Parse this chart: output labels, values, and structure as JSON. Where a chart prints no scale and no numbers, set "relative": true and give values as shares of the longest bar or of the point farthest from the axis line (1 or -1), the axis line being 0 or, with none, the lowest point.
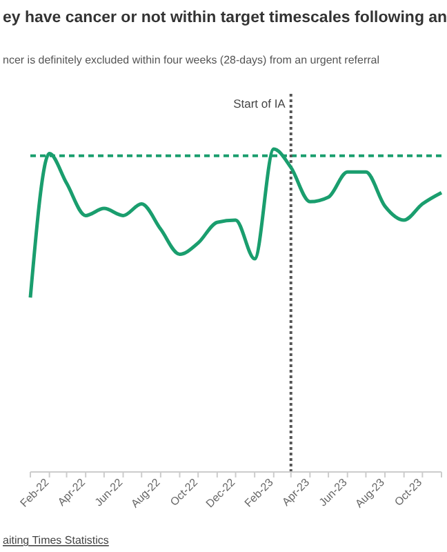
{
  "chart_data": {
    "type": "line",
    "title": "ey have cancer or not within target timescales following an",
    "subtitle": "ncer is definitely excluded within four weeks (28-days) from an urgent referral",
    "relative": true,
    "x": [
      "2022-01",
      "2022-02",
      "2022-03",
      "2022-04",
      "2022-05",
      "2022-06",
      "2022-07",
      "2022-08",
      "2022-09",
      "2022-10",
      "2022-11",
      "2022-12",
      "2023-01",
      "2023-02",
      "2023-03",
      "2023-04",
      "2023-05",
      "2023-06",
      "2023-07",
      "2023-08",
      "2023-09",
      "2023-10",
      "2023-11"
    ],
    "series": [
      {
        "color": "#1a9e6e",
        "values": [
          0.54,
          0.986,
          0.894,
          0.794,
          0.816,
          0.794,
          0.83,
          0.752,
          0.674,
          0.709,
          0.773,
          0.78,
          0.66,
          1,
          0.943,
          0.837,
          0.851,
          0.929,
          0.929,
          0.823,
          0.78,
          0.83,
          0.865
        ]
      }
    ],
    "xlim": [
      "2022-01",
      "2023-11"
    ],
    "xticks": [
      {
        "value": "2022-01",
        "label": null
      },
      {
        "value": "2022-02",
        "label": "Feb-22"
      },
      {
        "value": "2022-03",
        "label": null
      },
      {
        "value": "2022-04",
        "label": "Apr-22"
      },
      {
        "value": "2022-05",
        "label": null
      },
      {
        "value": "2022-06",
        "label": "Jun-22"
      },
      {
        "value": "2022-07",
        "label": null
      },
      {
        "value": "2022-08",
        "label": "Aug-22"
      },
      {
        "value": "2022-09",
        "label": null
      },
      {
        "value": "2022-10",
        "label": "Oct-22"
      },
      {
        "value": "2022-11",
        "label": null
      },
      {
        "value": "2022-12",
        "label": "Dec-22"
      },
      {
        "value": "2023-01",
        "label": null
      },
      {
        "value": "2023-02",
        "label": "Feb-23"
      },
      {
        "value": "2023-03",
        "label": null
      },
      {
        "value": "2023-04",
        "label": "Apr-23"
      },
      {
        "value": "2023-05",
        "label": null
      },
      {
        "value": "2023-06",
        "label": "Jun-23"
      },
      {
        "value": "2023-07",
        "label": null
      },
      {
        "value": "2023-08",
        "label": "Aug-23"
      },
      {
        "value": "2023-09",
        "label": null
      },
      {
        "value": "2023-10",
        "label": "Oct-23"
      },
      {
        "value": "2023-11",
        "label": null
      }
    ],
    "ref_lines": [
      {
        "axis": "y",
        "value": 0.979,
        "color": "#1a9e6e",
        "line_style": "dashed"
      },
      {
        "axis": "x",
        "value": "2023-03",
        "label": "Start of IA",
        "color": "#555555",
        "line_style": "dotted"
      }
    ],
    "annotations": [
      "aiting Times Statistics"
    ],
    "marker": "none",
    "line_style": "solid"
  }
}
